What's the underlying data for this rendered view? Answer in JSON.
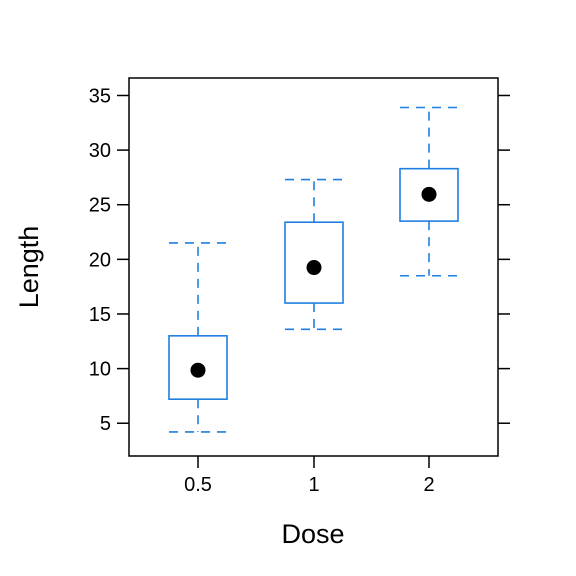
{
  "chart_data": {
    "type": "box",
    "title": "",
    "xlabel": "Dose",
    "ylabel": "Length",
    "categories": [
      "0.5",
      "1",
      "2"
    ],
    "ylim": [
      2.0,
      36.6
    ],
    "yticks": [
      5,
      10,
      15,
      20,
      25,
      30,
      35
    ],
    "tick_labels": [
      "5",
      "10",
      "15",
      "20",
      "25",
      "30",
      "35"
    ],
    "boxes": [
      {
        "category": "0.5",
        "whisker_low": 4.2,
        "q1": 7.2,
        "median": 9.85,
        "q3": 13.0,
        "whisker_high": 21.5
      },
      {
        "category": "1",
        "whisker_low": 13.6,
        "q1": 16.0,
        "median": 19.25,
        "q3": 23.4,
        "whisker_high": 27.3
      },
      {
        "category": "2",
        "whisker_low": 18.5,
        "q1": 23.5,
        "median": 25.95,
        "q3": 28.3,
        "whisker_high": 33.9
      }
    ],
    "colors": {
      "box": "#1F7FE0",
      "median_dot": "#000000",
      "axis": "#000000"
    },
    "grid": false,
    "legend": "none"
  }
}
